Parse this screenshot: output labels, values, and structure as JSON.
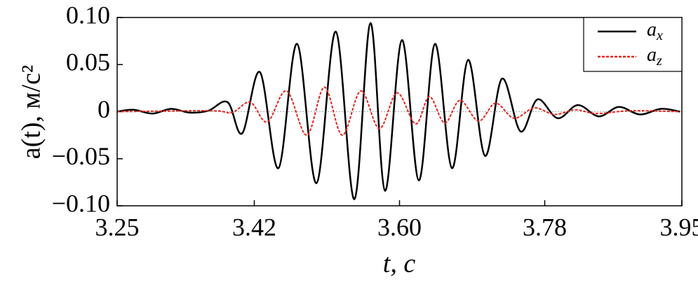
{
  "chart_data": {
    "type": "line",
    "xlabel": "t, с",
    "ylabel": "a(t), м/с²",
    "xlim": [
      3.25,
      3.95
    ],
    "ylim": [
      -0.1,
      0.1
    ],
    "xticks": [
      3.25,
      3.42,
      {
        "value": 3.6,
        "label": "3.60"
      },
      3.78,
      3.95
    ],
    "yticks": [
      {
        "value": 0.1,
        "label": "0.10"
      },
      0.05,
      0,
      {
        "value": -0.05,
        "label": "−0.05"
      },
      {
        "value": -0.1,
        "label": "−0.10"
      }
    ],
    "legend": "upper right",
    "series": [
      {
        "name": "a",
        "subscript": "x",
        "color": "#000000",
        "dash": "solid",
        "x": [
          3.25,
          3.27,
          3.294,
          3.317,
          3.34,
          3.363,
          3.387,
          3.405,
          3.427,
          3.45,
          3.473,
          3.497,
          3.521,
          3.544,
          3.564,
          3.582,
          3.603,
          3.624,
          3.644,
          3.665,
          3.685,
          3.706,
          3.727,
          3.75,
          3.771,
          3.796,
          3.821,
          3.847,
          3.872,
          3.898,
          3.924,
          3.948
        ],
        "values": [
          0,
          0.002,
          -0.002,
          0.003,
          -0.001,
          0.001,
          0.01,
          -0.023,
          0.042,
          -0.06,
          0.072,
          -0.076,
          0.085,
          -0.093,
          0.094,
          -0.084,
          0.076,
          -0.073,
          0.072,
          -0.06,
          0.055,
          -0.047,
          0.035,
          -0.021,
          0.013,
          -0.007,
          0.007,
          -0.005,
          0.005,
          -0.003,
          0.003,
          0
        ]
      },
      {
        "name": "a",
        "subscript": "z",
        "color": "#e8241e",
        "dash": "dashed",
        "x": [
          3.25,
          3.366,
          3.392,
          3.415,
          3.436,
          3.46,
          3.485,
          3.507,
          3.529,
          3.552,
          3.575,
          3.597,
          3.62,
          3.637,
          3.656,
          3.675,
          3.698,
          3.719,
          3.742,
          3.767,
          3.792,
          3.818,
          3.844,
          3.887,
          3.948
        ],
        "values": [
          0,
          0.001,
          -0.001,
          0.01,
          -0.011,
          0.022,
          -0.025,
          0.026,
          -0.025,
          0.022,
          -0.018,
          0.02,
          -0.013,
          0.016,
          -0.012,
          0.012,
          -0.01,
          0.009,
          -0.007,
          0.004,
          -0.003,
          0.002,
          -0.002,
          0.001,
          0
        ]
      }
    ]
  }
}
